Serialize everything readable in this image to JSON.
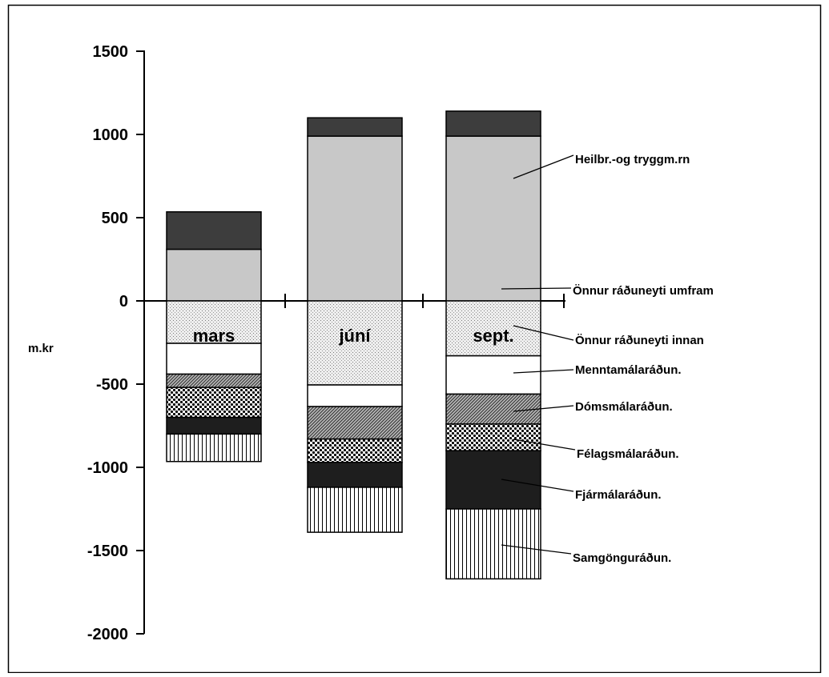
{
  "chart_data": {
    "type": "bar",
    "stacked": true,
    "ylabel": "m.kr",
    "ylim": [
      -2000,
      1500
    ],
    "yticks": [
      1500,
      1000,
      500,
      0,
      -500,
      -1000,
      -1500,
      -2000
    ],
    "categories": [
      "mars",
      "júní",
      "sept."
    ],
    "series": [
      {
        "name": "Heilbr.-og tryggm.rn",
        "key": "heil",
        "values": [
          310,
          990,
          990
        ]
      },
      {
        "name": "Önnur ráðuneyti umfram",
        "key": "onnurU",
        "values": [
          225,
          110,
          150
        ]
      },
      {
        "name": "Önnur ráðuneyti innan",
        "key": "onnurI",
        "values": [
          -255,
          -505,
          -330
        ]
      },
      {
        "name": "Menntamálaráðun.",
        "key": "mennt",
        "values": [
          -185,
          -130,
          -230
        ]
      },
      {
        "name": "Dómsmálaráðun.",
        "key": "doms",
        "values": [
          -80,
          -195,
          -180
        ]
      },
      {
        "name": "Félagsmálaráðun.",
        "key": "felags",
        "values": [
          -180,
          -140,
          -160
        ]
      },
      {
        "name": "Fjármálaráðun.",
        "key": "fjar",
        "values": [
          -100,
          -150,
          -350
        ]
      },
      {
        "name": "Samgönguráðun.",
        "key": "samg",
        "values": [
          -165,
          -270,
          -420
        ]
      }
    ],
    "grid": false,
    "legend": "right, with leader lines"
  }
}
